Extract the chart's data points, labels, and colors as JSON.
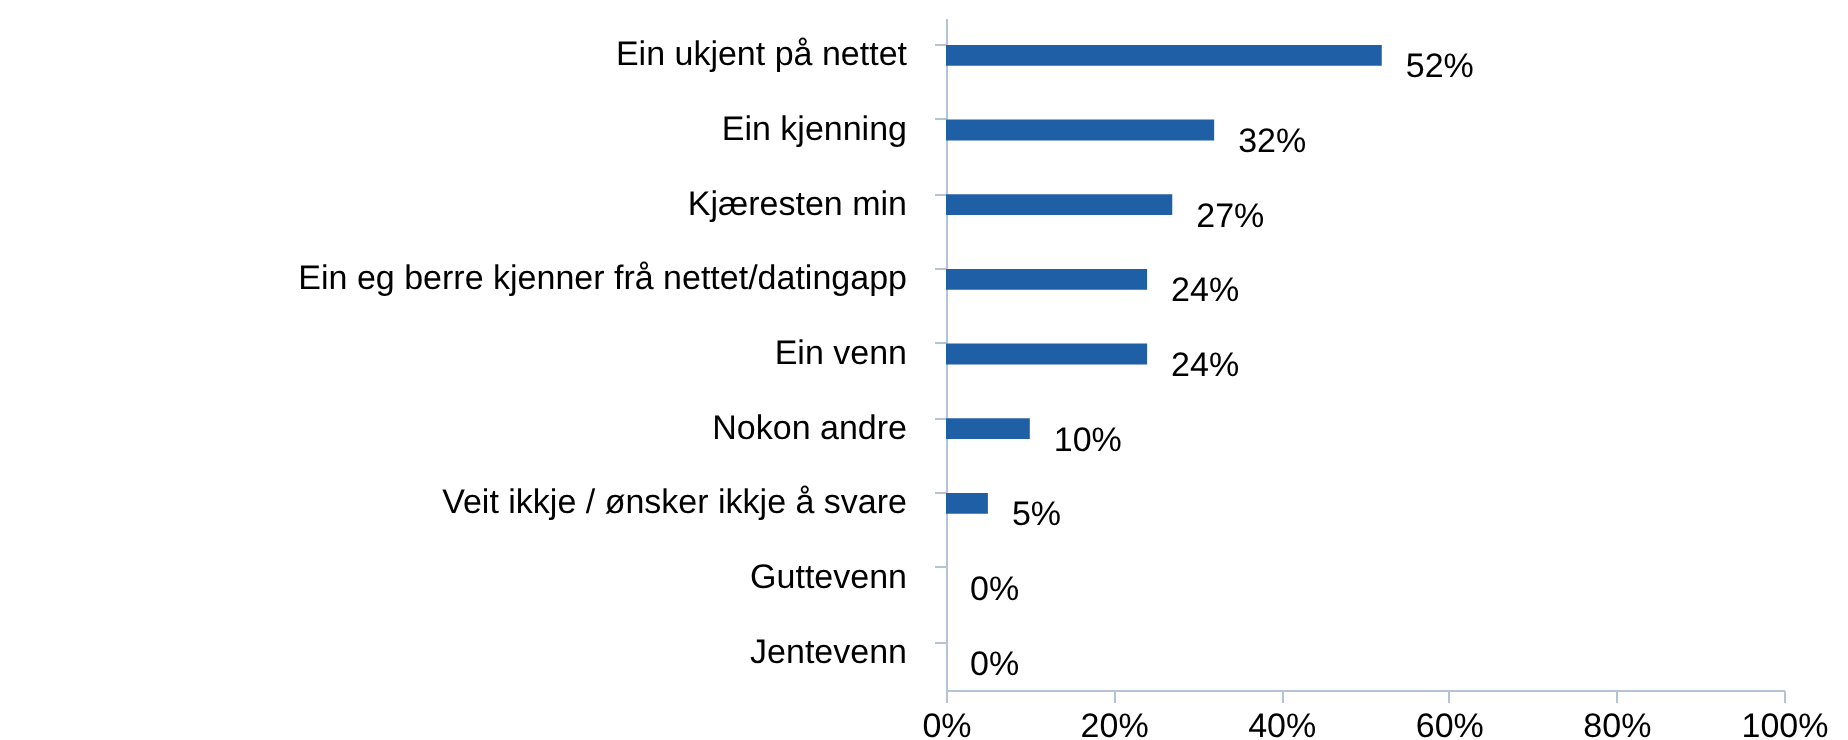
{
  "chart_data": {
    "type": "bar",
    "orientation": "horizontal",
    "categories": [
      "Ein ukjent på nettet",
      "Ein kjenning",
      "Kjæresten min",
      "Ein eg berre kjenner frå nettet/datingapp",
      "Ein venn",
      "Nokon andre",
      "Veit ikkje / ønsker ikkje å svare",
      "Guttevenn",
      "Jentevenn"
    ],
    "values": [
      52,
      32,
      27,
      24,
      24,
      10,
      5,
      0,
      0
    ],
    "value_labels": [
      "52%",
      "32%",
      "27%",
      "24%",
      "24%",
      "10%",
      "5%",
      "0%",
      "0%"
    ],
    "color": "#1f5fa6",
    "xlim": [
      0,
      100
    ],
    "xticks": [
      {
        "value": 0,
        "label": "0%"
      },
      {
        "value": 20,
        "label": "20%"
      },
      {
        "value": 40,
        "label": "40%"
      },
      {
        "value": 60,
        "label": "60%"
      },
      {
        "value": 80,
        "label": "80%"
      },
      {
        "value": 100,
        "label": "100%"
      }
    ],
    "grid": false
  }
}
